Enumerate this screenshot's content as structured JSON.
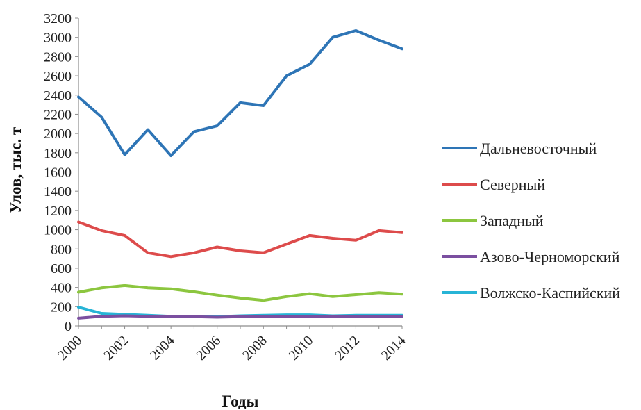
{
  "chart_data": {
    "type": "line",
    "title": "",
    "xlabel": "Годы",
    "ylabel": "Улов, тыс. т",
    "ylim": [
      0,
      3200
    ],
    "yticks": [
      0,
      200,
      400,
      600,
      800,
      1000,
      1200,
      1400,
      1600,
      1800,
      2000,
      2200,
      2400,
      2600,
      2800,
      3000,
      3200
    ],
    "xticks": [
      2000,
      2002,
      2004,
      2006,
      2008,
      2010,
      2012,
      2014
    ],
    "grid": false,
    "legend": "right",
    "x": [
      2000,
      2001,
      2002,
      2003,
      2004,
      2005,
      2006,
      2007,
      2008,
      2009,
      2010,
      2011,
      2012,
      2013,
      2014
    ],
    "series": [
      {
        "name": "Дальневосточный",
        "color": "#2e75b6",
        "values": [
          2380,
          2170,
          1780,
          2040,
          1770,
          2020,
          2080,
          2320,
          2290,
          2600,
          2720,
          3000,
          3070,
          2970,
          2880
        ]
      },
      {
        "name": "Северный",
        "color": "#dd4b4b",
        "values": [
          1080,
          990,
          940,
          760,
          720,
          760,
          820,
          780,
          760,
          850,
          940,
          910,
          890,
          990,
          970
        ]
      },
      {
        "name": "Западный",
        "color": "#8cc63f",
        "values": [
          350,
          395,
          420,
          395,
          385,
          355,
          320,
          290,
          265,
          305,
          335,
          305,
          325,
          345,
          330
        ]
      },
      {
        "name": "Азово-Черноморский",
        "color": "#7b4fa0",
        "values": [
          80,
          100,
          105,
          100,
          100,
          95,
          90,
          95,
          95,
          95,
          100,
          100,
          100,
          100,
          100
        ]
      },
      {
        "name": "Волжско-Каспийский",
        "color": "#27b4d6",
        "values": [
          195,
          130,
          120,
          110,
          100,
          100,
          95,
          105,
          110,
          115,
          115,
          105,
          110,
          110,
          110
        ]
      }
    ]
  }
}
